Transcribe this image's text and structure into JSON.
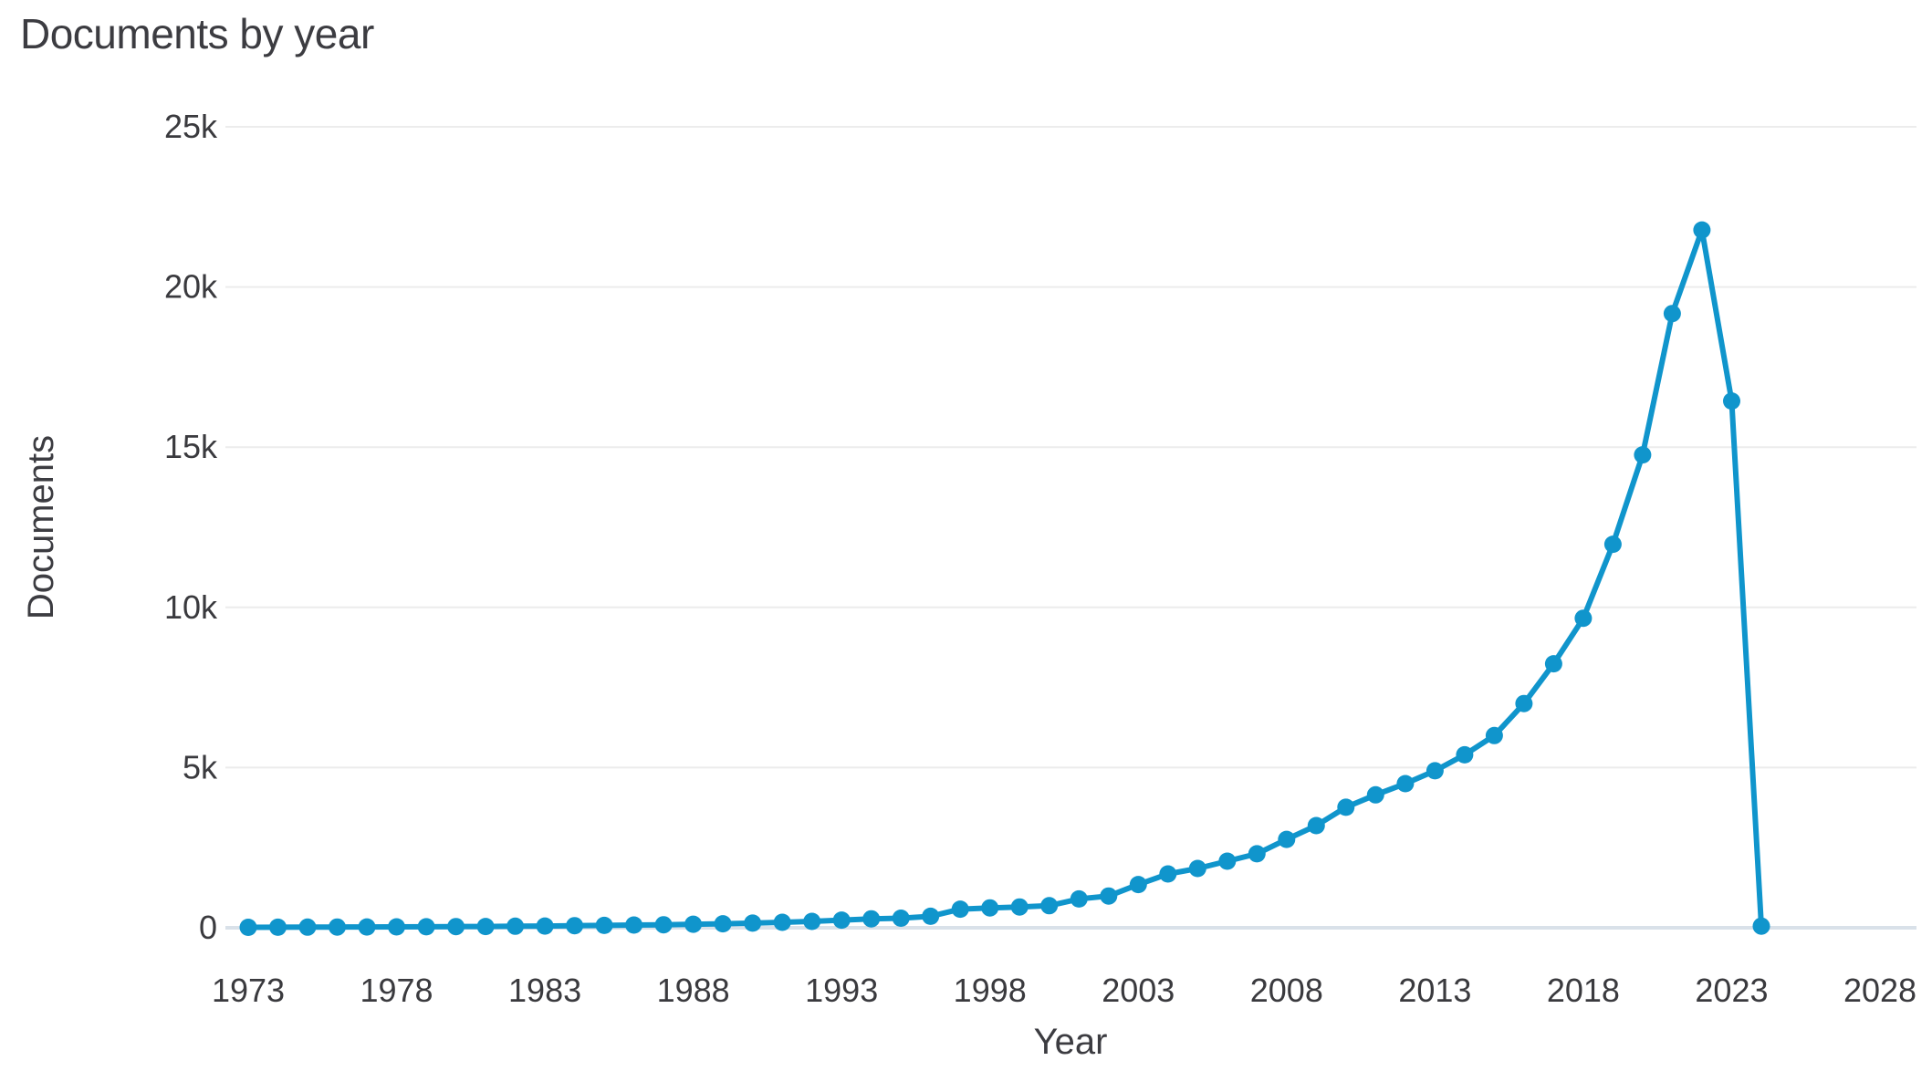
{
  "title": "Documents by year",
  "colors": {
    "line": "#1095CC",
    "marker": "#1095CC",
    "grid": "#ECECEC",
    "zero_line": "#D9E1E9",
    "text": "#3C3C41",
    "background": "#FFFFFF"
  },
  "chart_data": {
    "type": "line",
    "title": "Documents by year",
    "xlabel": "Year",
    "ylabel": "Documents",
    "legend": "none",
    "grid": "horizontal",
    "marker": "circle",
    "xlim": [
      1973,
      2028
    ],
    "ylim": [
      0,
      25000
    ],
    "xticks": [
      1973,
      1978,
      1983,
      1988,
      1993,
      1998,
      2003,
      2008,
      2013,
      2018,
      2023,
      2028
    ],
    "yticks": [
      {
        "value": 0,
        "label": "0"
      },
      {
        "value": 5000,
        "label": "5k"
      },
      {
        "value": 10000,
        "label": "10k"
      },
      {
        "value": 15000,
        "label": "15k"
      },
      {
        "value": 20000,
        "label": "20k"
      },
      {
        "value": 25000,
        "label": "25k"
      }
    ],
    "x": [
      1973,
      1974,
      1975,
      1976,
      1977,
      1978,
      1979,
      1980,
      1981,
      1982,
      1983,
      1984,
      1985,
      1986,
      1987,
      1988,
      1989,
      1990,
      1991,
      1992,
      1993,
      1994,
      1995,
      1996,
      1997,
      1998,
      1999,
      2000,
      2001,
      2002,
      2003,
      2004,
      2005,
      2006,
      2007,
      2008,
      2009,
      2010,
      2011,
      2012,
      2013,
      2014,
      2015,
      2016,
      2017,
      2018,
      2019,
      2020,
      2021,
      2022,
      2023,
      2024
    ],
    "values": [
      15,
      18,
      20,
      22,
      25,
      28,
      32,
      36,
      40,
      48,
      55,
      65,
      75,
      85,
      95,
      110,
      125,
      145,
      170,
      200,
      240,
      280,
      300,
      360,
      580,
      620,
      650,
      690,
      900,
      990,
      1350,
      1680,
      1850,
      2080,
      2310,
      2760,
      3190,
      3760,
      4150,
      4500,
      4900,
      5400,
      6000,
      7000,
      8240,
      9660,
      11970,
      14760,
      19170,
      21780,
      16440,
      50
    ]
  }
}
